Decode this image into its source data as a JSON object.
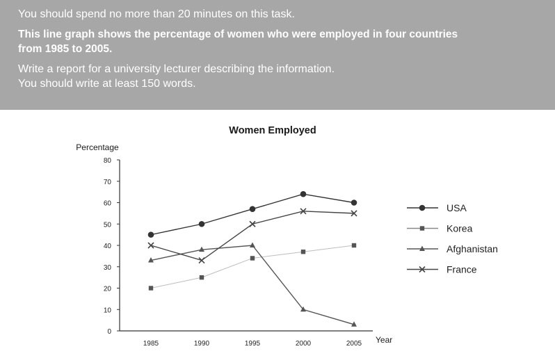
{
  "task": {
    "line1": "You should spend no more than 20 minutes on this task.",
    "bold_line1": "This line graph shows the percentage of women who were employed in four countries",
    "bold_line2": "from 1985 to 2005.",
    "line3": "Write a report for a university lecturer describing the information.",
    "line4": "You should write at least 150 words."
  },
  "colors": {
    "panel": "#a7a7a7",
    "USA": "#333333",
    "Korea": "#555555",
    "Afghanistan": "#555555",
    "France": "#444444",
    "Korea_line": "#bdbdbd"
  },
  "chart_data": {
    "type": "line",
    "title": "Women Employed",
    "ylabel": "Percentage",
    "xlabel": "Year",
    "x": [
      "1985",
      "1990",
      "1995",
      "2000",
      "2005"
    ],
    "ylim": [
      0,
      80
    ],
    "yticks": [
      0,
      10,
      20,
      30,
      40,
      50,
      60,
      70,
      80
    ],
    "legend_position": "right",
    "series": [
      {
        "name": "USA",
        "marker": "circle",
        "values": [
          45,
          50,
          57,
          64,
          60
        ]
      },
      {
        "name": "Korea",
        "marker": "square",
        "values": [
          20,
          25,
          34,
          37,
          40
        ]
      },
      {
        "name": "Afghanistan",
        "marker": "triangle",
        "values": [
          33,
          38,
          40,
          10,
          3
        ]
      },
      {
        "name": "France",
        "marker": "x",
        "values": [
          40,
          33,
          50,
          56,
          55
        ]
      }
    ]
  }
}
